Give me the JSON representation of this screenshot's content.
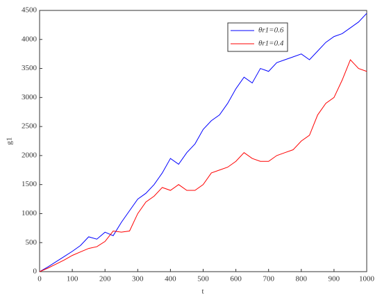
{
  "chart_data": {
    "type": "line",
    "x_label": "t",
    "y_label": "g1",
    "x": [
      0,
      25,
      50,
      75,
      100,
      125,
      150,
      175,
      200,
      225,
      250,
      275,
      300,
      325,
      350,
      375,
      400,
      425,
      450,
      475,
      500,
      525,
      550,
      575,
      600,
      625,
      650,
      675,
      700,
      725,
      750,
      775,
      800,
      825,
      850,
      875,
      900,
      925,
      950,
      975,
      1000
    ],
    "series": [
      {
        "name": "θr1=0.6",
        "color": "#0000ff",
        "values": [
          0,
          80,
          170,
          260,
          350,
          450,
          600,
          560,
          680,
          620,
          850,
          1050,
          1250,
          1350,
          1500,
          1700,
          1950,
          1850,
          2050,
          2200,
          2450,
          2600,
          2700,
          2900,
          3150,
          3350,
          3250,
          3500,
          3450,
          3600,
          3650,
          3700,
          3750,
          3650,
          3800,
          3950,
          4050,
          4100,
          4200,
          4300,
          4450
        ]
      },
      {
        "name": "θr1=0.4",
        "color": "#ff0000",
        "values": [
          0,
          60,
          130,
          200,
          280,
          340,
          400,
          430,
          520,
          700,
          680,
          700,
          1000,
          1200,
          1300,
          1450,
          1400,
          1500,
          1400,
          1400,
          1500,
          1700,
          1750,
          1800,
          1900,
          2050,
          1950,
          1900,
          1900,
          2000,
          2050,
          2100,
          2250,
          2350,
          2700,
          2900,
          3000,
          3300,
          3650,
          3500,
          3450
        ]
      }
    ],
    "xlim": [
      0,
      1000
    ],
    "xticks": [
      0,
      100,
      200,
      300,
      400,
      500,
      600,
      700,
      800,
      900,
      1000
    ],
    "ylim": [
      0,
      4500
    ],
    "yticks": [
      0,
      500,
      1000,
      1500,
      2000,
      2500,
      3000,
      3500,
      4000,
      4500
    ],
    "legend": "upper-right"
  }
}
